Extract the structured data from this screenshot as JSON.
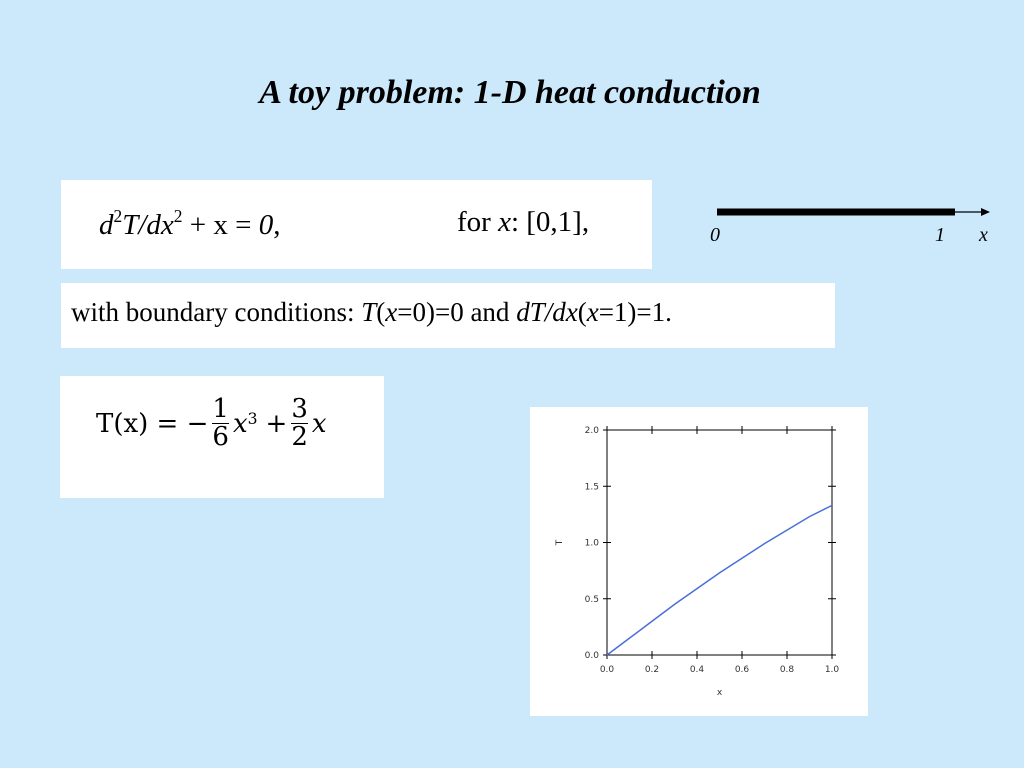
{
  "slide": {
    "title": "A toy problem: 1-D heat conduction",
    "equation": {
      "parts": [
        "d",
        "2",
        "T/dx",
        "2",
        " + x = ",
        "0",
        ","
      ],
      "domain": [
        "for ",
        "x",
        ": [0,1],"
      ]
    },
    "boundary": [
      "with boundary conditions: ",
      "T",
      "(",
      "x",
      "=0)=0 and ",
      "dT/dx",
      "(",
      "x",
      "=1)=1."
    ],
    "solution": {
      "lhs": "T(x) = −",
      "frac1": [
        "1",
        "6"
      ],
      "term1": "x",
      "exp": "3",
      "plus": "+",
      "frac2": [
        "3",
        "2"
      ],
      "term2": "x"
    },
    "rod": {
      "start": "0",
      "end": "1",
      "axis": "x"
    }
  },
  "chart_data": {
    "type": "line",
    "xlabel": "x",
    "ylabel": "T",
    "color": "#4a6fd8",
    "x": [
      0,
      0.1,
      0.2,
      0.3,
      0.4,
      0.5,
      0.6,
      0.7,
      0.8,
      0.9,
      1.0
    ],
    "values": [
      0,
      0.15,
      0.3,
      0.45,
      0.59,
      0.73,
      0.86,
      0.99,
      1.11,
      1.23,
      1.33
    ],
    "xlim": [
      0,
      1
    ],
    "ylim": [
      0,
      2
    ],
    "xticks": [
      {
        "value": 0,
        "label": "0.0"
      },
      {
        "value": 0.2,
        "label": "0.2"
      },
      {
        "value": 0.4,
        "label": "0.4"
      },
      {
        "value": 0.6,
        "label": "0.6"
      },
      {
        "value": 0.8,
        "label": "0.8"
      },
      {
        "value": 1,
        "label": "1.0"
      }
    ],
    "yticks": [
      {
        "value": 0,
        "label": "0.0"
      },
      {
        "value": 0.5,
        "label": "0.5"
      },
      {
        "value": 1,
        "label": "1.0"
      },
      {
        "value": 1.5,
        "label": "1.5"
      },
      {
        "value": 2,
        "label": "2.0"
      }
    ]
  }
}
